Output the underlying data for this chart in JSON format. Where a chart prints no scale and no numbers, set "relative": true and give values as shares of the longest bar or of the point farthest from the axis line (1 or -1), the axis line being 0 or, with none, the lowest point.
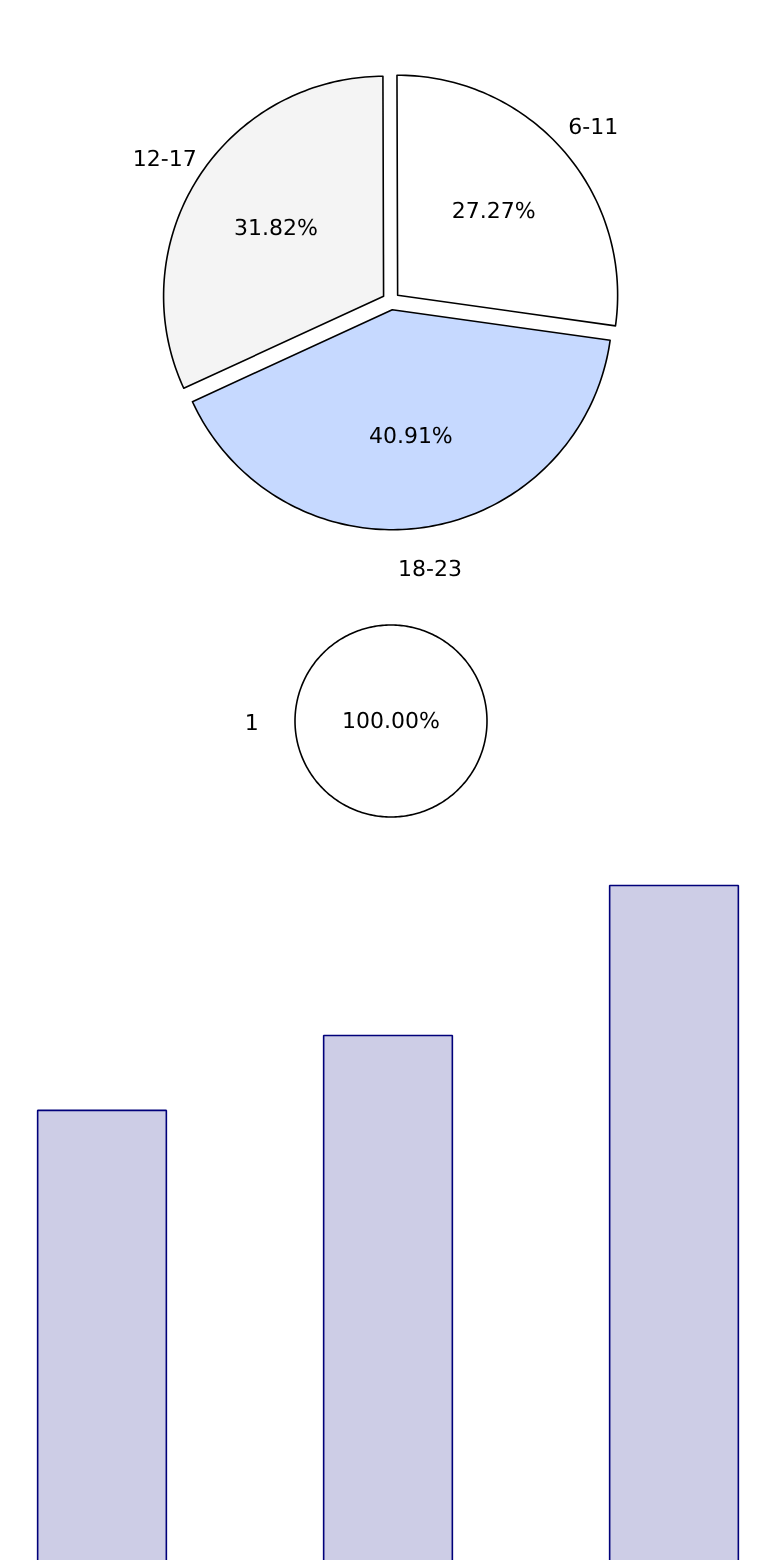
{
  "chart_data": [
    {
      "type": "pie",
      "categories": [
        "6-11",
        "12-17",
        "18-23"
      ],
      "values": [
        27.27,
        31.82,
        40.91
      ],
      "colors": [
        "#ffffff",
        "#f4f4f4",
        "#c6d9ff"
      ],
      "value_labels": [
        "27.27%",
        "31.82%",
        "40.91%"
      ]
    },
    {
      "type": "pie",
      "categories": [
        "1"
      ],
      "values": [
        100
      ],
      "colors": [
        "#ffffff"
      ],
      "value_labels": [
        "100.00%"
      ]
    },
    {
      "type": "bar",
      "categories": [
        null,
        null,
        null
      ],
      "values": [
        0.667,
        0.778,
        1
      ],
      "color": "#cdcde6",
      "relative": true
    }
  ]
}
